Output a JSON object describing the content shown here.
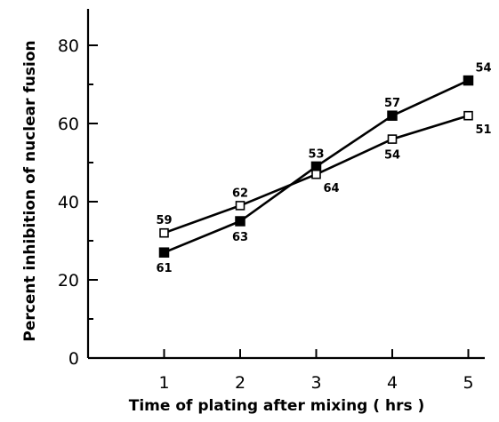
{
  "chart_data": {
    "type": "line",
    "title": "",
    "xlabel": "Time of plating after mixing ( hrs )",
    "ylabel": "Percent inhibition of nuclear fusion",
    "x": [
      1,
      2,
      3,
      4,
      5
    ],
    "xlim": [
      0,
      5.4
    ],
    "ylim": [
      0,
      90
    ],
    "xticks": [
      "1",
      "2",
      "3",
      "4",
      "5"
    ],
    "yticks": [
      "0",
      "20",
      "40",
      "60",
      "80"
    ],
    "ytick_values": [
      0,
      20,
      40,
      60,
      80
    ],
    "yminor_values": [
      10,
      30,
      50,
      70
    ],
    "legend": "none",
    "grid": false,
    "series": [
      {
        "marker": "filled-square",
        "values": [
          27,
          35,
          49,
          62,
          71
        ],
        "point_labels": [
          "61",
          "63",
          "53",
          "57",
          "54"
        ],
        "label_position": [
          "below",
          "below",
          "above",
          "above",
          "above-right"
        ]
      },
      {
        "marker": "open-square",
        "values": [
          32,
          39,
          47,
          56,
          62
        ],
        "point_labels": [
          "59",
          "62",
          "64",
          "54",
          "51"
        ],
        "label_position": [
          "above",
          "above",
          "below-right",
          "below",
          "below-right"
        ]
      }
    ]
  }
}
